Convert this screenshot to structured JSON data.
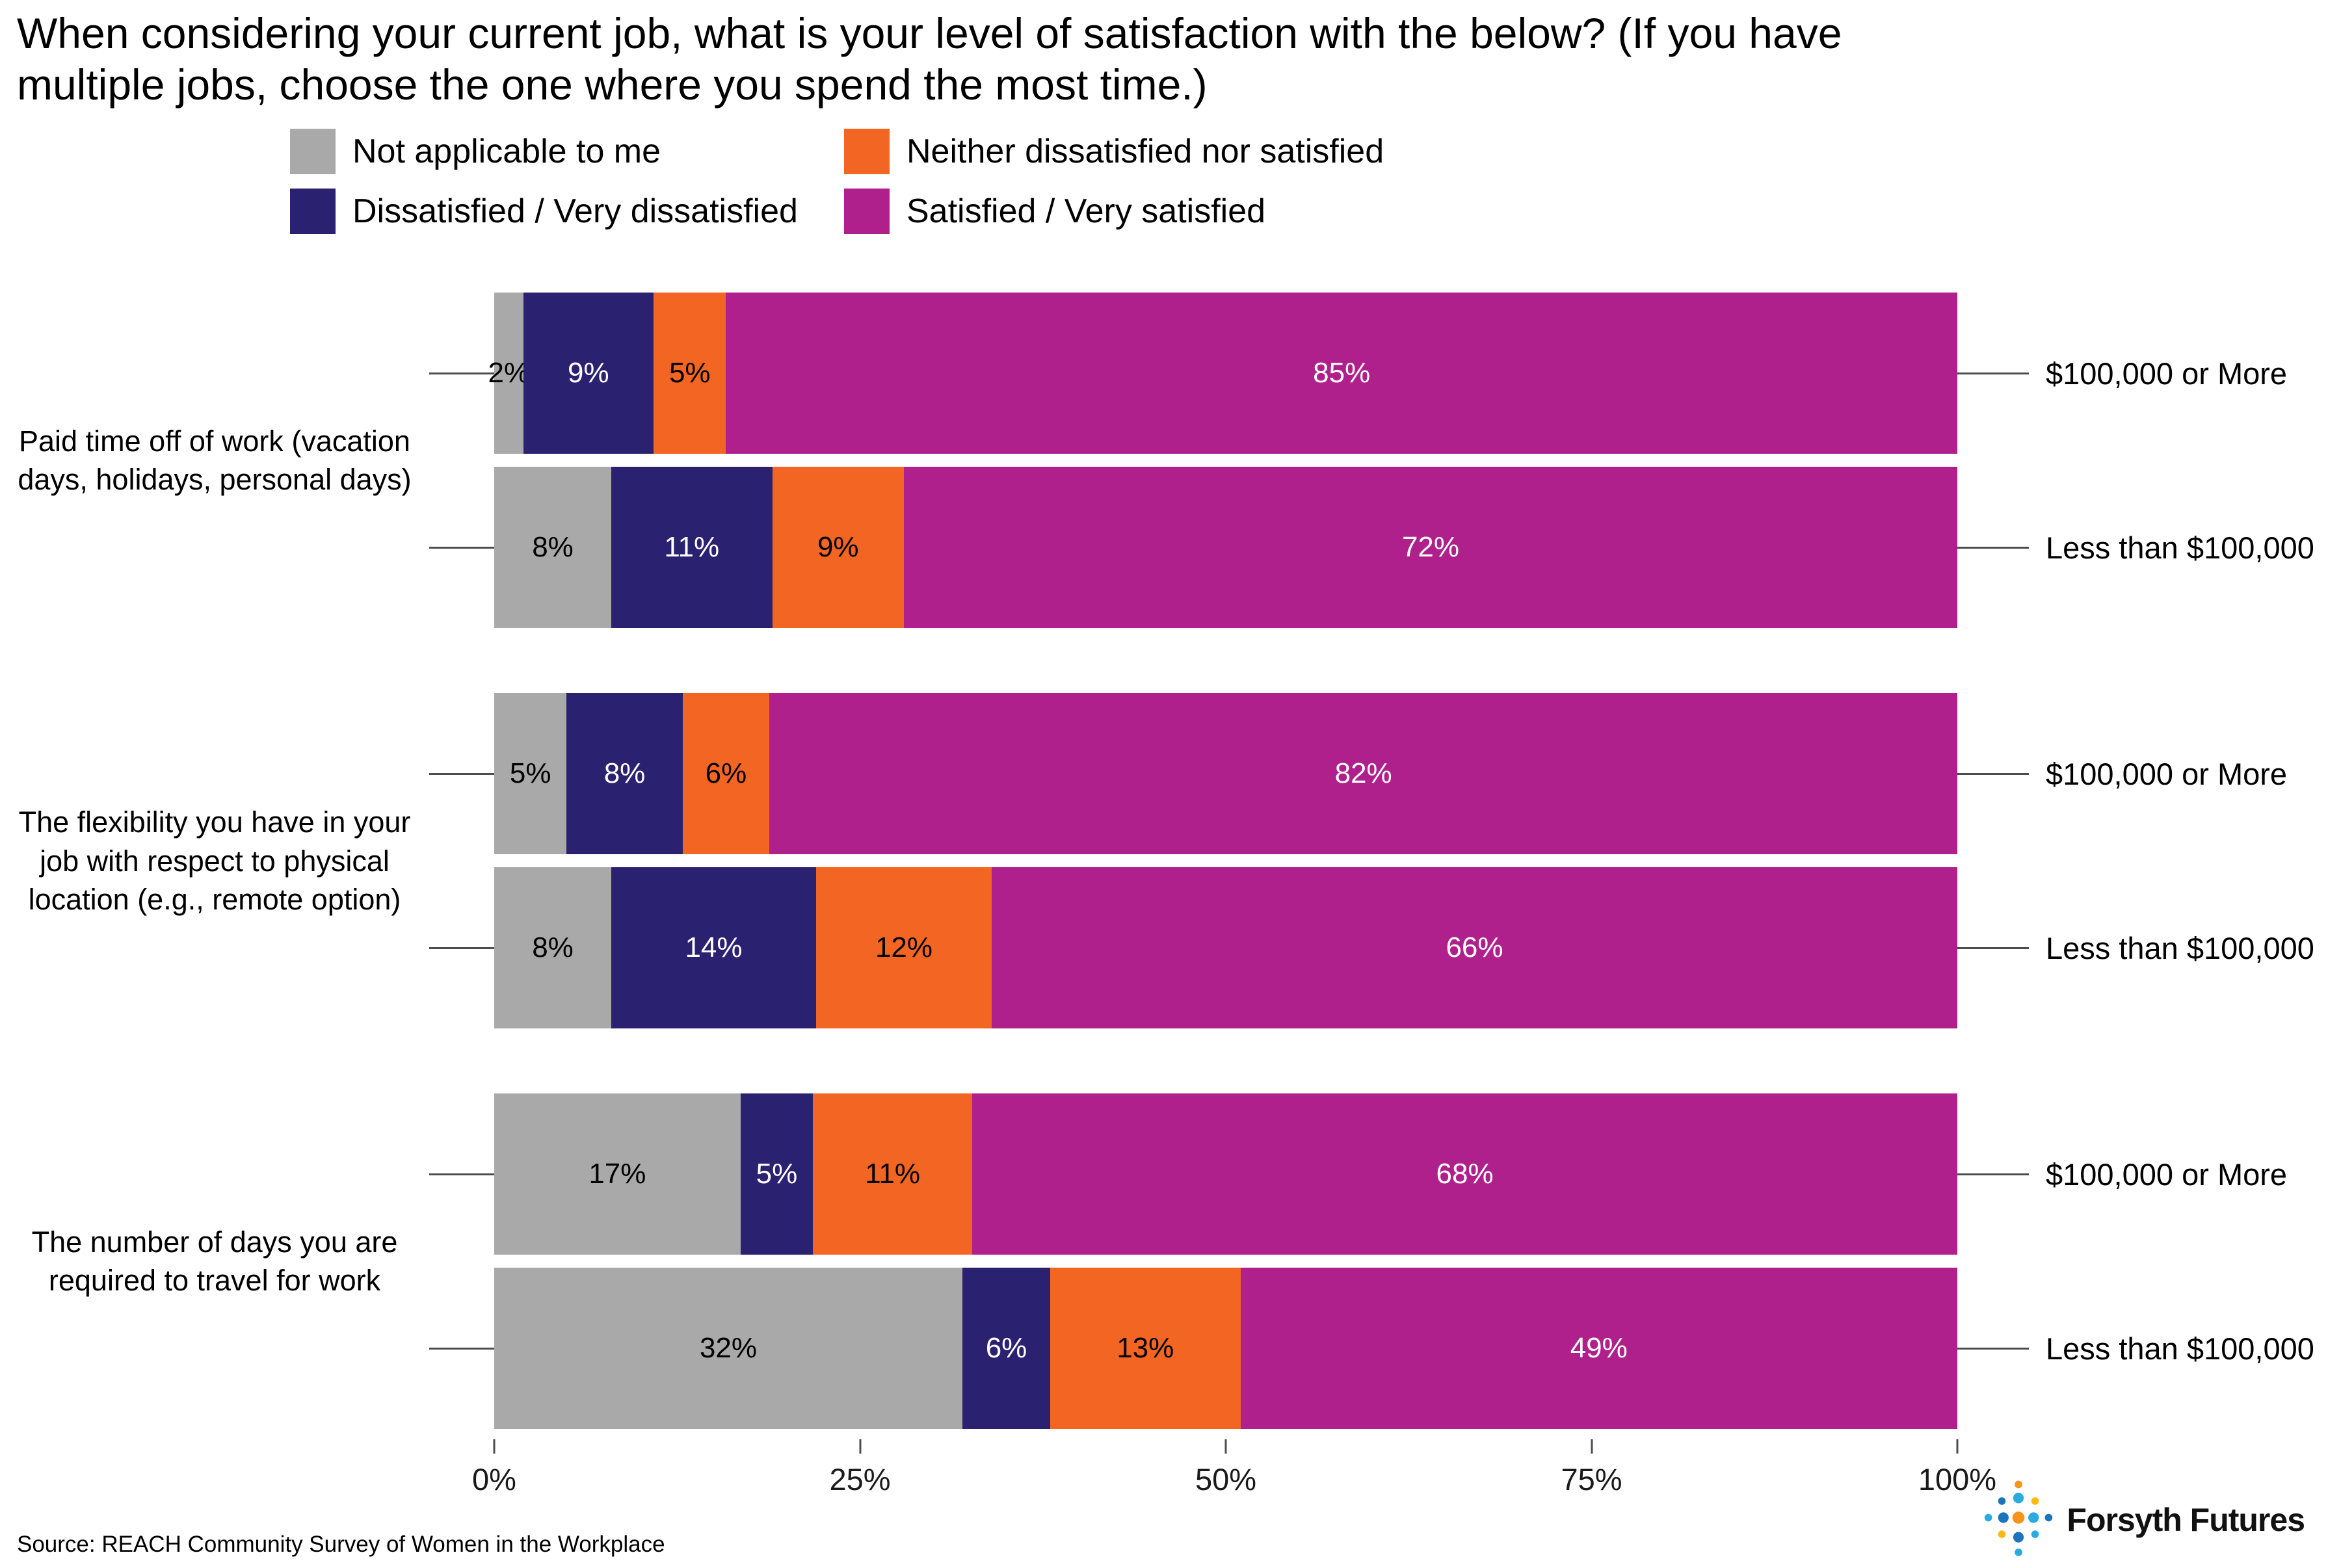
{
  "title": "When considering your current job, what is your level of satisfaction with the below? (If you have multiple jobs, choose the one where you spend the most time.)",
  "source": "Source: REACH Community Survey of Women in the Workplace",
  "logo_text": "Forsyth Futures",
  "legend_order": [
    0,
    2,
    1,
    3
  ],
  "logo_icon_colors": [
    "#29abe2",
    "#1b75bc",
    "#f7941e",
    "#fdb913"
  ],
  "chart_data": {
    "type": "bar",
    "orientation": "horizontal",
    "stacked": true,
    "unit": "%",
    "xlim": [
      0,
      100
    ],
    "x_axis": {
      "labels": [
        "0%",
        "25%",
        "50%",
        "75%",
        "100%"
      ],
      "positions": [
        0,
        25,
        50,
        75,
        100
      ]
    },
    "series": [
      {
        "name": "Not applicable to me",
        "color": "#a9a9a9",
        "text_color": "#000000"
      },
      {
        "name": "Dissatisfied / Very dissatisfied",
        "color": "#2b2171",
        "text_color": "#ffffff"
      },
      {
        "name": "Neither dissatisfied nor satisfied",
        "color": "#f26522",
        "text_color": "#000000"
      },
      {
        "name": "Satisfied / Very satisfied",
        "color": "#b0208c",
        "text_color": "#ffffff"
      }
    ],
    "groups": [
      {
        "category": "Paid time off of work (vacation days, holidays, personal days)",
        "bars": [
          {
            "label": "$100,000 or More",
            "values": [
              2,
              9,
              5,
              85
            ]
          },
          {
            "label": "Less than $100,000",
            "values": [
              8,
              11,
              9,
              72
            ]
          }
        ]
      },
      {
        "category": "The flexibility you have in your job with respect to physical location (e.g., remote option)",
        "bars": [
          {
            "label": "$100,000 or More",
            "values": [
              5,
              8,
              6,
              82
            ]
          },
          {
            "label": "Less than $100,000",
            "values": [
              8,
              14,
              12,
              66
            ]
          }
        ]
      },
      {
        "category": "The number of days you are required to travel for work",
        "bars": [
          {
            "label": "$100,000 or More",
            "values": [
              17,
              5,
              11,
              68
            ]
          },
          {
            "label": "Less than $100,000",
            "values": [
              32,
              6,
              13,
              49
            ]
          }
        ]
      }
    ]
  }
}
